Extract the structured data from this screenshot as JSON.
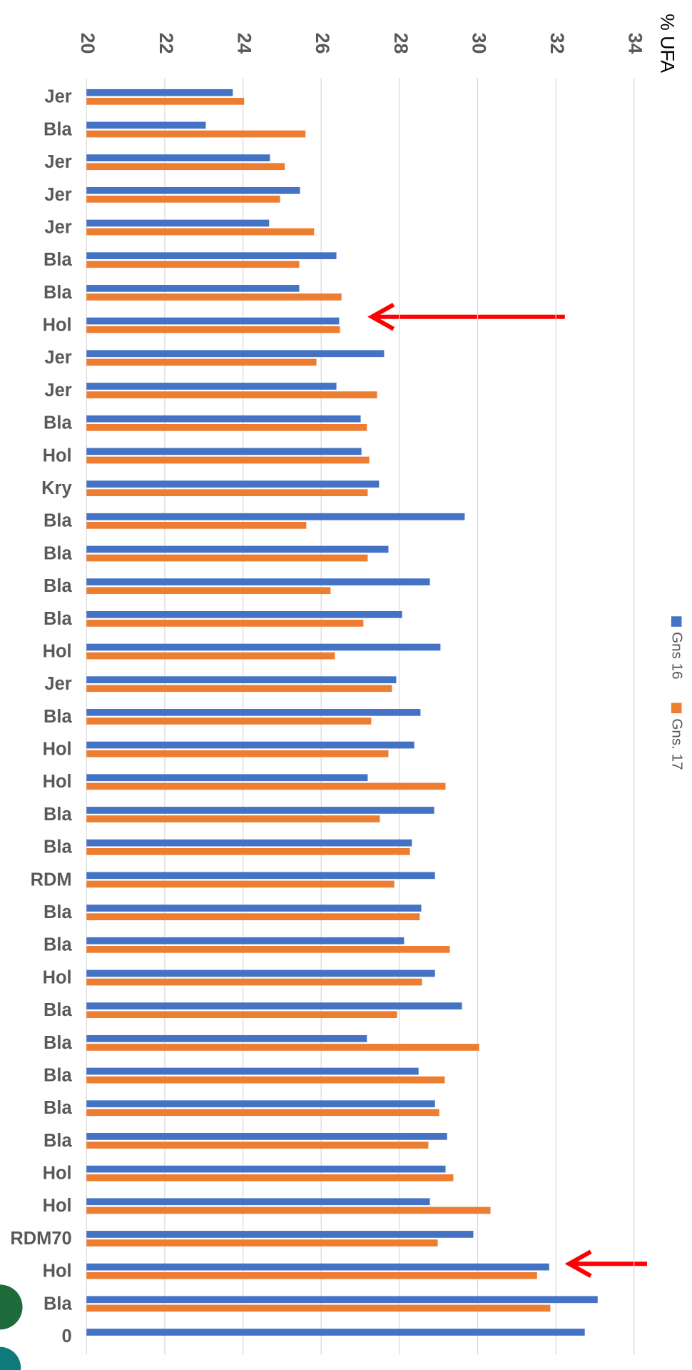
{
  "chart_data": {
    "type": "bar",
    "orientation": "horizontal",
    "axis_label": "% UFA",
    "categories": [
      "Jer",
      "Bla",
      "Jer",
      "Jer",
      "Jer",
      "Bla",
      "Bla",
      "Hol",
      "Jer",
      "Jer",
      "Bla",
      "Hol",
      "Kry",
      "Bla",
      "Bla",
      "Bla",
      "Bla",
      "Hol",
      "Jer",
      "Bla",
      "Hol",
      "Hol",
      "Bla",
      "Bla",
      "RDM",
      "Bla",
      "Bla",
      "Hol",
      "Bla",
      "Bla",
      "Bla",
      "Bla",
      "Bla",
      "Hol",
      "Hol",
      "RDM70",
      "Hol",
      "Bla",
      "0"
    ],
    "series": [
      {
        "name": "Gns 16",
        "color": "#4472c4",
        "values": [
          23.74,
          23.05,
          24.69,
          25.46,
          24.67,
          26.39,
          25.44,
          26.46,
          27.61,
          26.39,
          27.01,
          27.03,
          27.48,
          29.67,
          27.72,
          28.78,
          28.07,
          29.05,
          27.92,
          28.54,
          28.38,
          27.19,
          28.89,
          28.32,
          28.91,
          28.56,
          28.12,
          28.91,
          29.6,
          27.17,
          28.49,
          28.91,
          29.22,
          29.18,
          28.78,
          29.89,
          31.83,
          33.07,
          32.74
        ]
      },
      {
        "name": "Gns. 17",
        "color": "#ed7d31",
        "values": [
          24.03,
          25.6,
          25.07,
          24.95,
          25.82,
          25.44,
          26.52,
          26.48,
          25.88,
          27.43,
          27.17,
          27.23,
          27.19,
          25.62,
          27.19,
          26.24,
          27.08,
          26.35,
          27.81,
          27.28,
          27.72,
          29.18,
          27.5,
          28.27,
          27.87,
          28.52,
          29.29,
          28.58,
          27.94,
          30.04,
          29.16,
          29.02,
          28.74,
          29.38,
          30.33,
          28.98,
          31.52,
          31.86,
          null
        ]
      }
    ],
    "ylim": [
      20,
      34
    ],
    "yticks": [
      20,
      22,
      24,
      26,
      28,
      30,
      32,
      34
    ],
    "grid": true
  }
}
